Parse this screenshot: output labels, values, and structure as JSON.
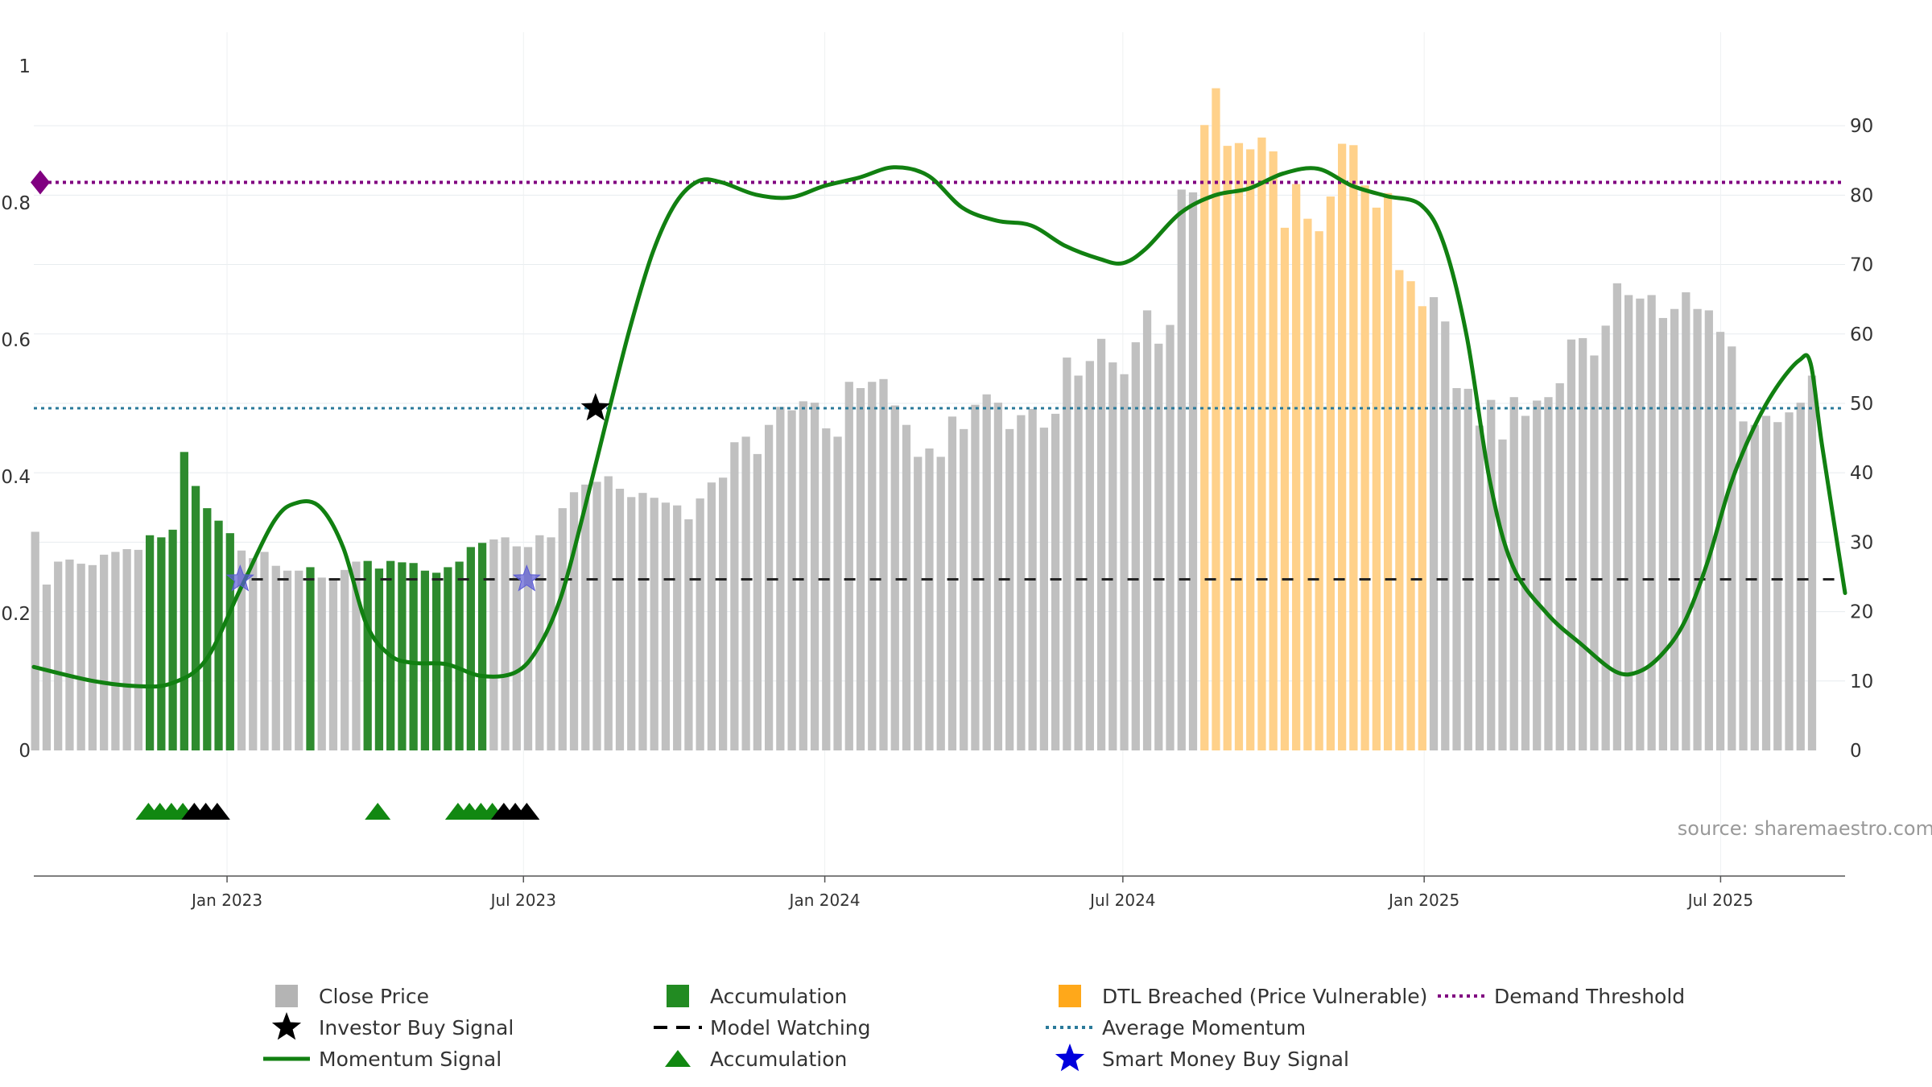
{
  "colors": {
    "close_price": "#c0c0c0",
    "accumulation": "#2e8b2e",
    "dtl_breached": "#ffd18a",
    "momentum": "#118011",
    "average_momentum": "#2a7a9a",
    "demand_threshold": "#800080",
    "model_watching": "#222222",
    "smart_money": "#5b5bd6",
    "investor": "#000000",
    "accumulation_marker": "#118811"
  },
  "source_label": "source: sharemaestro.com",
  "legend": [
    {
      "key": "close_price",
      "label": "Close Price",
      "symbol": "square",
      "color": "#b4b4b4"
    },
    {
      "key": "investor",
      "label": "Investor Buy Signal",
      "symbol": "star",
      "color": "#000000"
    },
    {
      "key": "momentum",
      "label": "Momentum Signal",
      "symbol": "line",
      "color": "#118011"
    },
    {
      "key": "accumulation",
      "label": "Accumulation",
      "symbol": "square",
      "color": "#228b22"
    },
    {
      "key": "model_watching",
      "label": "Model Watching",
      "symbol": "dash",
      "color": "#000000"
    },
    {
      "key": "accumulation_marker",
      "label": "Accumulation",
      "symbol": "triangle",
      "color": "#118811"
    },
    {
      "key": "dtl_breached",
      "label": "DTL Breached (Price Vulnerable)",
      "symbol": "square",
      "color": "#ffa81a"
    },
    {
      "key": "average_momentum",
      "label": "Average Momentum",
      "symbol": "dotted",
      "color": "#2a7a9a"
    },
    {
      "key": "smart_money",
      "label": "Smart Money Buy Signal",
      "symbol": "star",
      "color": "#0000dd"
    },
    {
      "key": "demand_threshold",
      "label": "Demand Threshold",
      "symbol": "dotted",
      "color": "#800080"
    }
  ],
  "chart_data": {
    "type": "bar",
    "x_range": [
      "2022-09-05",
      "2025-09-15"
    ],
    "x_ticks": [
      {
        "date": "2023-01-01",
        "label": "Jan 2023"
      },
      {
        "date": "2023-07-01",
        "label": "Jul 2023"
      },
      {
        "date": "2024-01-01",
        "label": "Jan 2024"
      },
      {
        "date": "2024-07-01",
        "label": "Jul 2024"
      },
      {
        "date": "2025-01-01",
        "label": "Jan 2025"
      },
      {
        "date": "2025-07-01",
        "label": "Jul 2025"
      }
    ],
    "y_left": {
      "range": [
        0,
        1
      ],
      "ticks": [
        {
          "v": 0,
          "label": "0"
        },
        {
          "v": 0.2,
          "label": "0.2"
        },
        {
          "v": 0.4,
          "label": "0.4"
        },
        {
          "v": 0.6,
          "label": "0.6"
        },
        {
          "v": 0.8,
          "label": "0.8"
        },
        {
          "v": 1,
          "label": "1"
        }
      ]
    },
    "y_right": {
      "range": [
        0,
        98.6
      ],
      "ticks": [
        {
          "v": 0,
          "label": "0"
        },
        {
          "v": 10,
          "label": "10"
        },
        {
          "v": 20,
          "label": "20"
        },
        {
          "v": 30,
          "label": "30"
        },
        {
          "v": 40,
          "label": "40"
        },
        {
          "v": 50,
          "label": "50"
        },
        {
          "v": 60,
          "label": "60"
        },
        {
          "v": 70,
          "label": "70"
        },
        {
          "v": 80,
          "label": "80"
        },
        {
          "v": 90,
          "label": "90"
        }
      ]
    },
    "grid": true,
    "legend_position": "bottom",
    "bar_start_date": "2022-09-05",
    "bar_interval_days": 7,
    "close_price": [
      31.5,
      23.9,
      27.2,
      27.5,
      26.9,
      26.7,
      28.2,
      28.6,
      29.0,
      28.9,
      31.0,
      30.7,
      31.8,
      43.0,
      38.1,
      34.9,
      33.1,
      31.3,
      28.8,
      27.7,
      28.6,
      26.6,
      25.9,
      25.9,
      26.4,
      24.9,
      24.7,
      26.0,
      27.2,
      27.3,
      26.2,
      27.3,
      27.1,
      27.0,
      25.9,
      25.6,
      26.4,
      27.2,
      29.3,
      29.9,
      30.4,
      30.7,
      29.4,
      29.3,
      31.0,
      30.7,
      34.9,
      37.2,
      38.3,
      38.7,
      39.5,
      37.7,
      36.5,
      37.1,
      36.4,
      35.7,
      35.3,
      33.3,
      36.3,
      38.6,
      39.3,
      44.4,
      45.2,
      42.7,
      46.9,
      49.5,
      49.0,
      50.3,
      50.1,
      46.4,
      45.2,
      53.1,
      52.2,
      53.1,
      53.5,
      49.7,
      46.9,
      42.3,
      43.5,
      42.3,
      48.1,
      46.3,
      49.8,
      51.3,
      50.1,
      46.3,
      48.3,
      49.2,
      46.5,
      48.5,
      56.6,
      54.0,
      56.1,
      59.3,
      55.9,
      54.2,
      58.8,
      63.4,
      58.6,
      61.3,
      80.8,
      80.4,
      90.1,
      95.4,
      87.1,
      87.5,
      86.6,
      88.3,
      86.3,
      75.3,
      81.6,
      76.6,
      74.8,
      79.8,
      87.4,
      87.2,
      81.4,
      78.2,
      80.3,
      69.2,
      67.6,
      64.0,
      65.3,
      61.8,
      52.2,
      52.1,
      46.8,
      50.5,
      44.8,
      50.9,
      48.2,
      50.4,
      50.9,
      52.9,
      59.2,
      59.4,
      56.9,
      61.2,
      67.3,
      65.6,
      65.1,
      65.6,
      62.3,
      63.6,
      66.0,
      63.6,
      63.4,
      60.3,
      58.2,
      47.4,
      46.9,
      48.2,
      47.3,
      48.7,
      50.1,
      54.0
    ],
    "accumulation_weeks": [
      10,
      11,
      12,
      13,
      14,
      15,
      16,
      17,
      24,
      29,
      30,
      31,
      32,
      33,
      34,
      35,
      36,
      37,
      38,
      39
    ],
    "dtl_breached_weeks": [
      102,
      103,
      104,
      105,
      106,
      107,
      108,
      109,
      110,
      111,
      112,
      113,
      114,
      115,
      116,
      117,
      118,
      119,
      120,
      121
    ],
    "momentum_signal": [
      {
        "date": "2022-09-05",
        "v": 0.122
      },
      {
        "date": "2022-10-10",
        "v": 0.102
      },
      {
        "date": "2022-11-07",
        "v": 0.094
      },
      {
        "date": "2022-11-28",
        "v": 0.098
      },
      {
        "date": "2022-12-19",
        "v": 0.132
      },
      {
        "date": "2023-01-09",
        "v": 0.235
      },
      {
        "date": "2023-01-30",
        "v": 0.336
      },
      {
        "date": "2023-02-13",
        "v": 0.362
      },
      {
        "date": "2023-02-27",
        "v": 0.355
      },
      {
        "date": "2023-03-13",
        "v": 0.296
      },
      {
        "date": "2023-03-27",
        "v": 0.185
      },
      {
        "date": "2023-04-10",
        "v": 0.14
      },
      {
        "date": "2023-04-24",
        "v": 0.128
      },
      {
        "date": "2023-05-15",
        "v": 0.126
      },
      {
        "date": "2023-06-05",
        "v": 0.109
      },
      {
        "date": "2023-06-26",
        "v": 0.114
      },
      {
        "date": "2023-07-10",
        "v": 0.15
      },
      {
        "date": "2023-07-24",
        "v": 0.225
      },
      {
        "date": "2023-08-07",
        "v": 0.35
      },
      {
        "date": "2023-08-21",
        "v": 0.485
      },
      {
        "date": "2023-09-04",
        "v": 0.617
      },
      {
        "date": "2023-09-18",
        "v": 0.728
      },
      {
        "date": "2023-10-02",
        "v": 0.8
      },
      {
        "date": "2023-10-16",
        "v": 0.832
      },
      {
        "date": "2023-10-30",
        "v": 0.83
      },
      {
        "date": "2023-11-20",
        "v": 0.812
      },
      {
        "date": "2023-12-11",
        "v": 0.808
      },
      {
        "date": "2024-01-01",
        "v": 0.825
      },
      {
        "date": "2024-01-22",
        "v": 0.837
      },
      {
        "date": "2024-02-12",
        "v": 0.852
      },
      {
        "date": "2024-03-04",
        "v": 0.84
      },
      {
        "date": "2024-03-25",
        "v": 0.793
      },
      {
        "date": "2024-04-15",
        "v": 0.774
      },
      {
        "date": "2024-05-06",
        "v": 0.767
      },
      {
        "date": "2024-05-27",
        "v": 0.737
      },
      {
        "date": "2024-06-17",
        "v": 0.718
      },
      {
        "date": "2024-07-01",
        "v": 0.712
      },
      {
        "date": "2024-07-15",
        "v": 0.733
      },
      {
        "date": "2024-08-05",
        "v": 0.785
      },
      {
        "date": "2024-08-26",
        "v": 0.811
      },
      {
        "date": "2024-09-16",
        "v": 0.821
      },
      {
        "date": "2024-10-07",
        "v": 0.843
      },
      {
        "date": "2024-10-28",
        "v": 0.85
      },
      {
        "date": "2024-11-18",
        "v": 0.825
      },
      {
        "date": "2024-12-09",
        "v": 0.81
      },
      {
        "date": "2024-12-30",
        "v": 0.797
      },
      {
        "date": "2025-01-13",
        "v": 0.74
      },
      {
        "date": "2025-01-27",
        "v": 0.605
      },
      {
        "date": "2025-02-10",
        "v": 0.395
      },
      {
        "date": "2025-02-24",
        "v": 0.27
      },
      {
        "date": "2025-03-17",
        "v": 0.2
      },
      {
        "date": "2025-04-07",
        "v": 0.155
      },
      {
        "date": "2025-04-28",
        "v": 0.115
      },
      {
        "date": "2025-05-12",
        "v": 0.115
      },
      {
        "date": "2025-05-26",
        "v": 0.14
      },
      {
        "date": "2025-06-09",
        "v": 0.188
      },
      {
        "date": "2025-06-23",
        "v": 0.275
      },
      {
        "date": "2025-07-07",
        "v": 0.388
      },
      {
        "date": "2025-07-21",
        "v": 0.47
      },
      {
        "date": "2025-08-04",
        "v": 0.53
      },
      {
        "date": "2025-08-18",
        "v": 0.57
      },
      {
        "date": "2025-08-25",
        "v": 0.565
      },
      {
        "date": "2025-09-01",
        "v": 0.445
      },
      {
        "date": "2025-09-15",
        "v": 0.23
      }
    ],
    "average_momentum": 0.5,
    "demand_threshold": 0.83,
    "model_watching_level": 0.25,
    "model_watching_from": "2023-01-16",
    "smart_money_buy_signals": [
      {
        "date": "2023-01-09",
        "v": 0.25
      },
      {
        "date": "2023-07-03",
        "v": 0.25
      }
    ],
    "investor_buy_signals": [
      {
        "date": "2023-08-14",
        "v": 0.5
      }
    ],
    "accumulation_markers": [
      {
        "date": "2022-11-14",
        "color": "green"
      },
      {
        "date": "2022-11-21",
        "color": "green"
      },
      {
        "date": "2022-11-28",
        "color": "green"
      },
      {
        "date": "2022-12-05",
        "color": "green"
      },
      {
        "date": "2022-12-12",
        "color": "black"
      },
      {
        "date": "2022-12-19",
        "color": "black"
      },
      {
        "date": "2022-12-26",
        "color": "black"
      },
      {
        "date": "2023-04-03",
        "color": "green"
      },
      {
        "date": "2023-05-22",
        "color": "green"
      },
      {
        "date": "2023-05-29",
        "color": "green"
      },
      {
        "date": "2023-06-05",
        "color": "green"
      },
      {
        "date": "2023-06-12",
        "color": "green"
      },
      {
        "date": "2023-06-19",
        "color": "black"
      },
      {
        "date": "2023-06-26",
        "color": "black"
      },
      {
        "date": "2023-07-03",
        "color": "black"
      }
    ]
  }
}
